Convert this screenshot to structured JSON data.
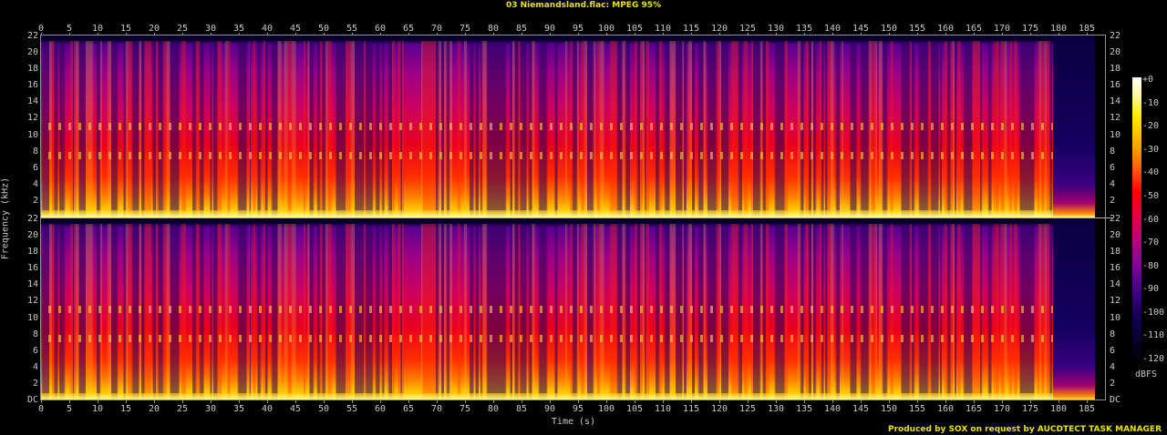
{
  "header": {
    "title": "03 Niemandsland.flac: MPEG 95%"
  },
  "footer": {
    "credit": "Produced by SOX on request by AUCDTECT TASK MANAGER"
  },
  "axes": {
    "xlabel": "Time (s)",
    "ylabel": "Frequency (kHz)",
    "colorbar_unit": "dBFS"
  },
  "colors": {
    "title": "#e8e000",
    "axis_text": "#c8c8c8",
    "background": "#000000"
  },
  "chart_data": {
    "type": "heatmap",
    "subtype": "spectrogram",
    "title": "03 Niemandsland.flac: MPEG 95%",
    "xlabel": "Time (s)",
    "ylabel": "Frequency (kHz)",
    "channels": 2,
    "x_ticks": [
      0,
      5,
      10,
      15,
      20,
      25,
      30,
      35,
      40,
      45,
      50,
      55,
      60,
      65,
      70,
      75,
      80,
      85,
      90,
      95,
      100,
      105,
      110,
      115,
      120,
      125,
      130,
      135,
      140,
      145,
      150,
      155,
      160,
      165,
      170,
      175,
      180,
      185
    ],
    "x_range": [
      0,
      188.5
    ],
    "y_ticks_left_top": [
      "22",
      "20",
      "18",
      "16",
      "14",
      "12",
      "10",
      "8",
      "6",
      "4",
      "2"
    ],
    "y_ticks_left_bottom": [
      "22",
      "20",
      "18",
      "16",
      "14",
      "12",
      "10",
      "8",
      "6",
      "4",
      "2",
      "DC"
    ],
    "y_ticks_right_top": [
      "22",
      "20",
      "18",
      "16",
      "14",
      "12",
      "10",
      "8",
      "6",
      "4",
      "2"
    ],
    "y_ticks_right_bottom": [
      "22",
      "20",
      "18",
      "16",
      "14",
      "12",
      "10",
      "8",
      "6",
      "4",
      "2",
      "DC"
    ],
    "y_range_khz": [
      0,
      22
    ],
    "colorbar": {
      "label": "dBFS",
      "ticks": [
        "+0",
        "-10",
        "-20",
        "-30",
        "-40",
        "-50",
        "-60",
        "-70",
        "-80",
        "-90",
        "-100",
        "-110",
        "-120"
      ],
      "range": [
        -120,
        0
      ],
      "colormap": [
        "#ffffff",
        "#ffe800",
        "#ff6000",
        "#f80000",
        "#b8007a",
        "#4c0090",
        "#080038",
        "#000008"
      ]
    },
    "annotations": {
      "audio_end_s": 179,
      "lowpass_cutoff_khz": 21.5,
      "harmonic_bands_khz": [
        11,
        7.5
      ]
    },
    "footer": "Produced by SOX on request by AUCDTECT TASK MANAGER"
  }
}
